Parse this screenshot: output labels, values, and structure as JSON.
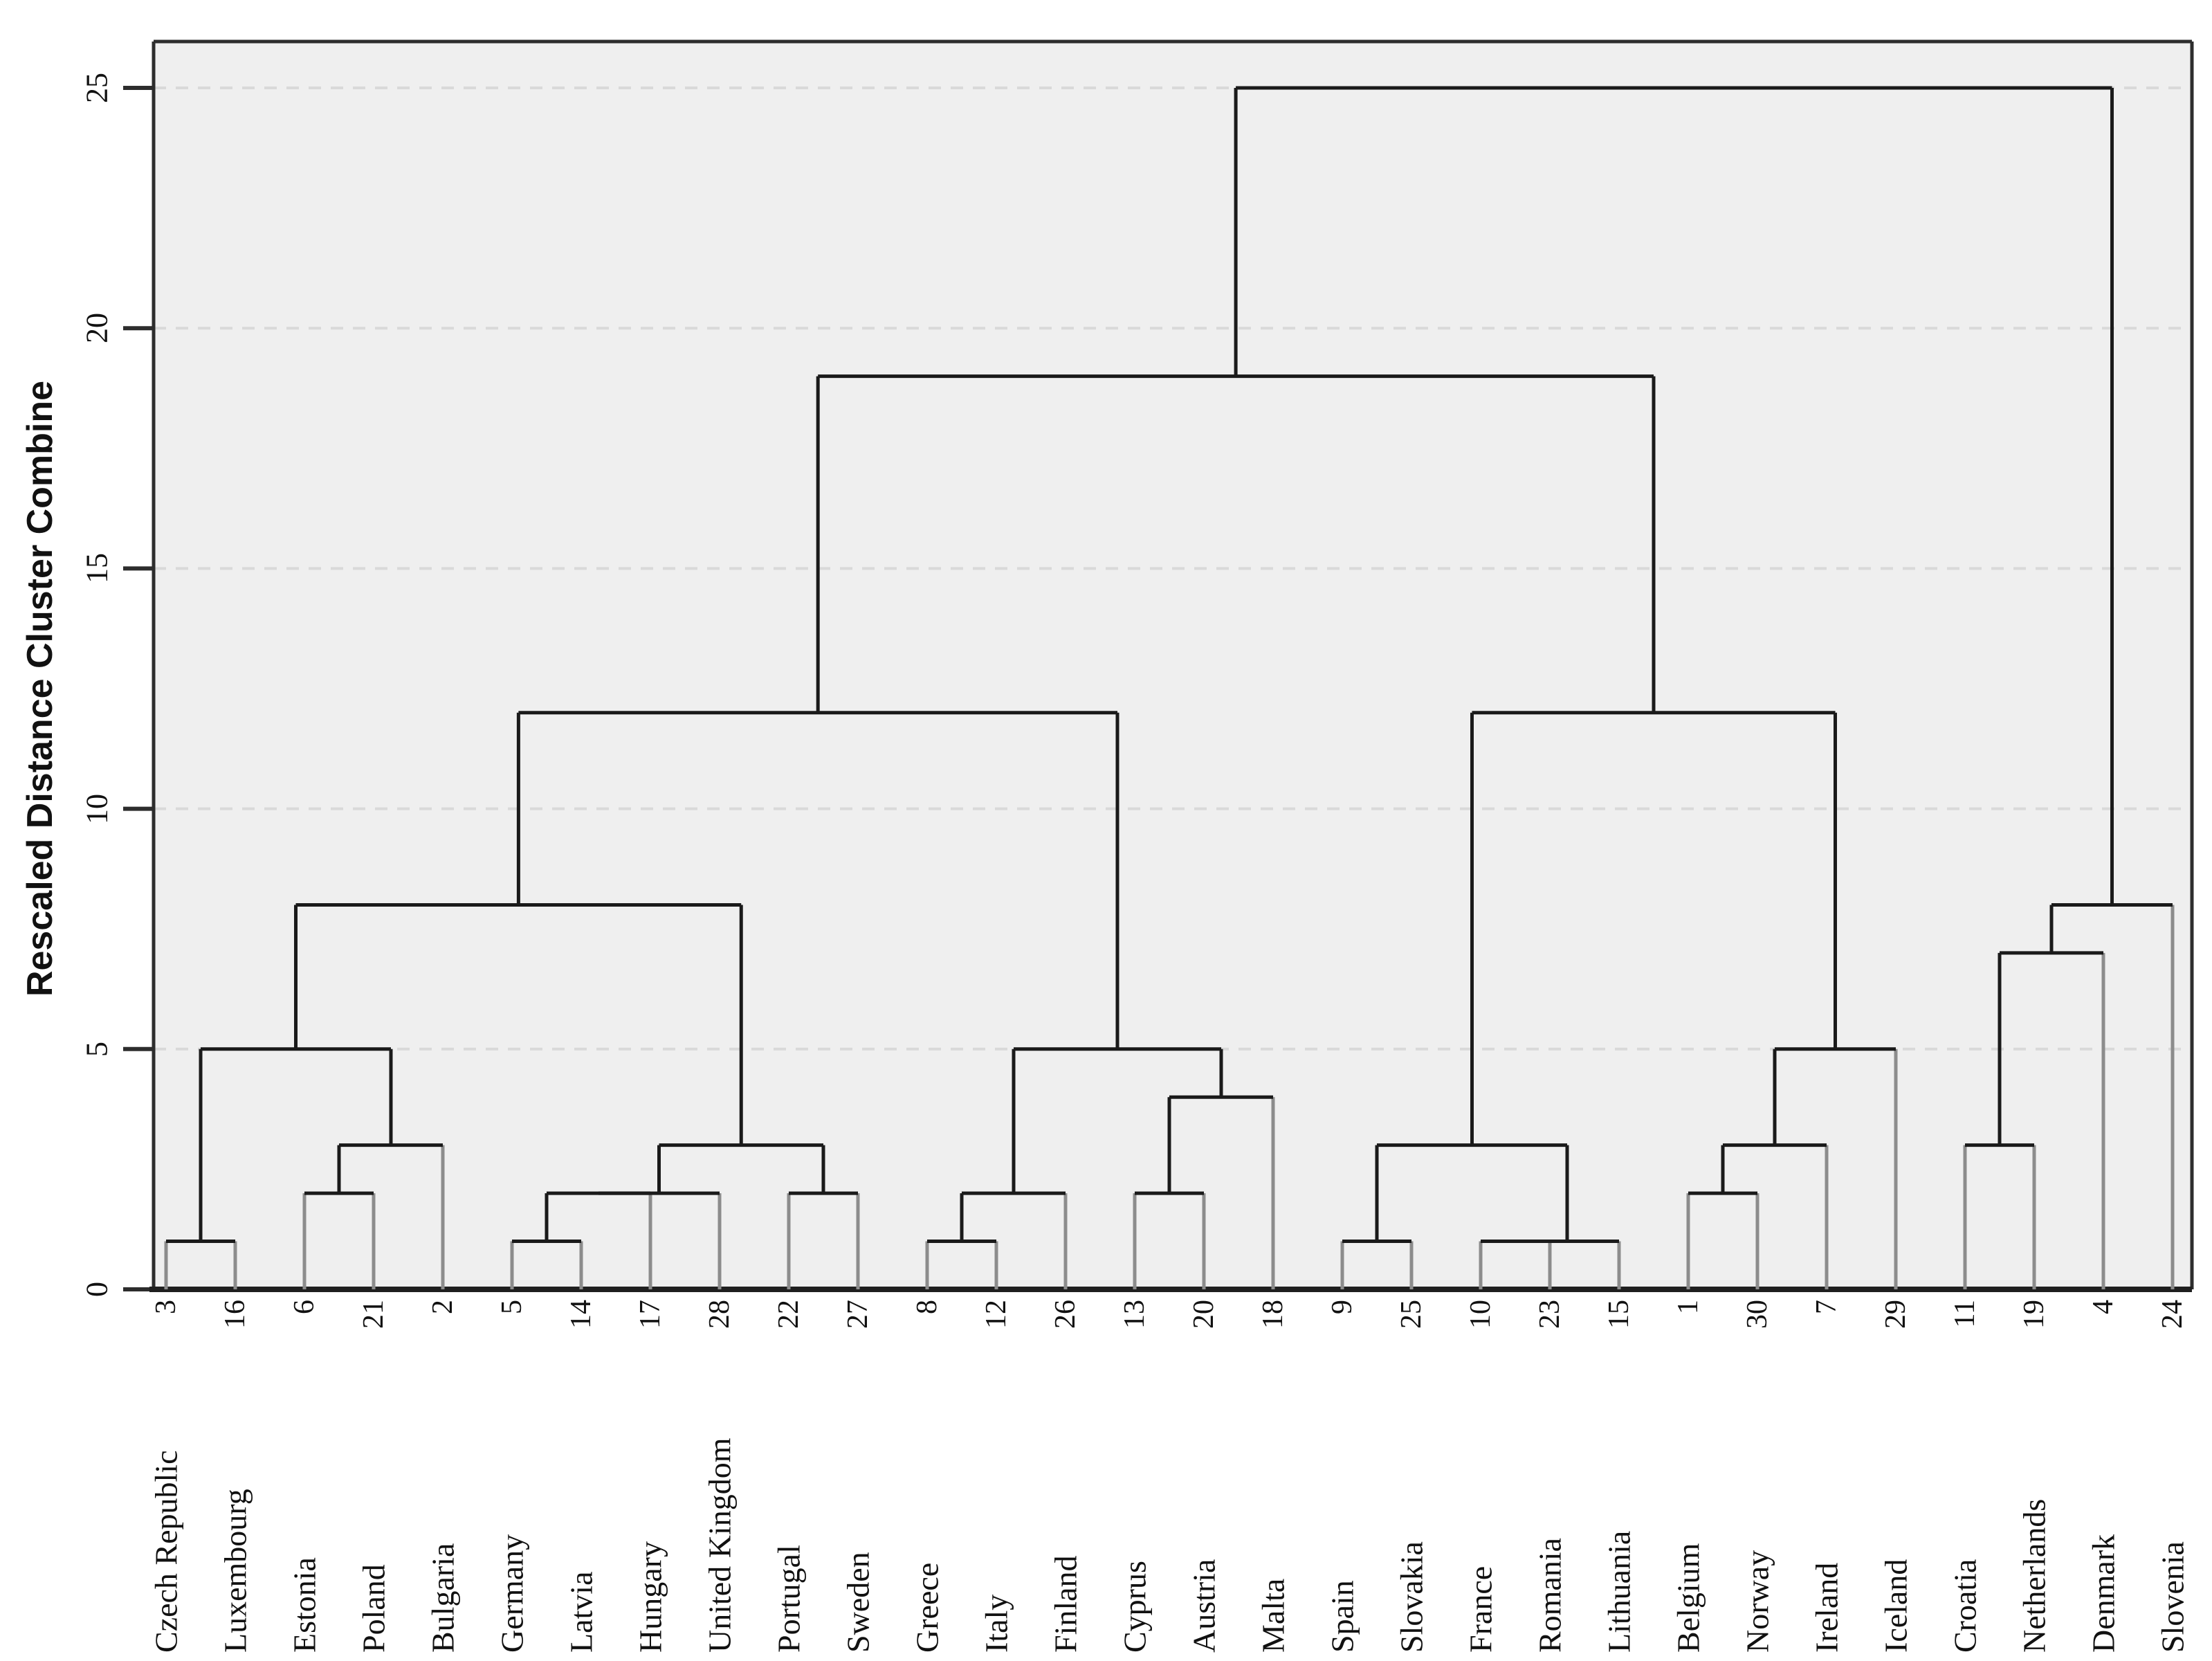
{
  "colors": {
    "plot_bg": "#efefef",
    "page_bg": "#ffffff",
    "cluster_line": "#1a1a1a",
    "leaf_stem": "#8c8c8c",
    "frame": "#2d2d2d",
    "baseline": "#1f1f1f",
    "gridline": "#d9d9d9",
    "text": "#111111"
  },
  "chart_data": {
    "type": "dendrogram",
    "ylabel": "Rescaled Distance Cluster Combine",
    "ylim": [
      0,
      25
    ],
    "yticks": [
      "0",
      "5",
      "10",
      "15",
      "20",
      "25"
    ],
    "grid": "dashed horizontal gridlines at 5,10,15,20,25",
    "legend_position": "none",
    "leaves": [
      {
        "case": "3",
        "label": "Czech Republic"
      },
      {
        "case": "16",
        "label": "Luxembourg"
      },
      {
        "case": "6",
        "label": "Estonia"
      },
      {
        "case": "21",
        "label": "Poland"
      },
      {
        "case": "2",
        "label": "Bulgaria"
      },
      {
        "case": "5",
        "label": "Germany"
      },
      {
        "case": "14",
        "label": "Latvia"
      },
      {
        "case": "17",
        "label": "Hungary"
      },
      {
        "case": "28",
        "label": "United Kingdom"
      },
      {
        "case": "22",
        "label": "Portugal"
      },
      {
        "case": "27",
        "label": "Sweden"
      },
      {
        "case": "8",
        "label": "Greece"
      },
      {
        "case": "12",
        "label": "Italy"
      },
      {
        "case": "26",
        "label": "Finland"
      },
      {
        "case": "13",
        "label": "Cyprus"
      },
      {
        "case": "20",
        "label": "Austria"
      },
      {
        "case": "18",
        "label": "Malta"
      },
      {
        "case": "9",
        "label": "Spain"
      },
      {
        "case": "25",
        "label": "Slovakia"
      },
      {
        "case": "10",
        "label": "France"
      },
      {
        "case": "23",
        "label": "Romania"
      },
      {
        "case": "15",
        "label": "Lithuania"
      },
      {
        "case": "1",
        "label": "Belgium"
      },
      {
        "case": "30",
        "label": "Norway"
      },
      {
        "case": "7",
        "label": "Ireland"
      },
      {
        "case": "29",
        "label": "Iceland"
      },
      {
        "case": "11",
        "label": "Croatia"
      },
      {
        "case": "19",
        "label": "Netherlands"
      },
      {
        "case": "4",
        "label": "Denmark"
      },
      {
        "case": "24",
        "label": "Slovenia"
      }
    ],
    "merges": [
      {
        "a": "L0",
        "b": "L1",
        "h": 1
      },
      {
        "a": "L2",
        "b": "L3",
        "h": 2
      },
      {
        "a": "M1",
        "b": "L4",
        "h": 3
      },
      {
        "a": "M0",
        "b": "M2",
        "h": 5
      },
      {
        "a": "L5",
        "b": "L6",
        "h": 1
      },
      {
        "a": "M4",
        "b": "L7",
        "h": 2
      },
      {
        "a": "M5",
        "b": "L8",
        "h": 2
      },
      {
        "a": "L9",
        "b": "L10",
        "h": 2
      },
      {
        "a": "M6",
        "b": "M7",
        "h": 3
      },
      {
        "a": "M3",
        "b": "M8",
        "h": 8
      },
      {
        "a": "L11",
        "b": "L12",
        "h": 1
      },
      {
        "a": "M10",
        "b": "L13",
        "h": 2
      },
      {
        "a": "L14",
        "b": "L15",
        "h": 2
      },
      {
        "a": "M12",
        "b": "L16",
        "h": 4
      },
      {
        "a": "M11",
        "b": "M13",
        "h": 5
      },
      {
        "a": "M9",
        "b": "M14",
        "h": 12
      },
      {
        "a": "L17",
        "b": "L18",
        "h": 1
      },
      {
        "a": "L19",
        "b": "L20",
        "h": 1
      },
      {
        "a": "M17",
        "b": "L21",
        "h": 1
      },
      {
        "a": "M16",
        "b": "M18",
        "h": 3
      },
      {
        "a": "L22",
        "b": "L23",
        "h": 2
      },
      {
        "a": "M20",
        "b": "L24",
        "h": 3
      },
      {
        "a": "M21",
        "b": "L25",
        "h": 5
      },
      {
        "a": "M19",
        "b": "M22",
        "h": 12
      },
      {
        "a": "M15",
        "b": "M23",
        "h": 19
      },
      {
        "a": "L26",
        "b": "L27",
        "h": 3
      },
      {
        "a": "M25",
        "b": "L28",
        "h": 7
      },
      {
        "a": "M26",
        "b": "L29",
        "h": 8
      },
      {
        "a": "M24",
        "b": "M27",
        "h": 25
      }
    ]
  }
}
